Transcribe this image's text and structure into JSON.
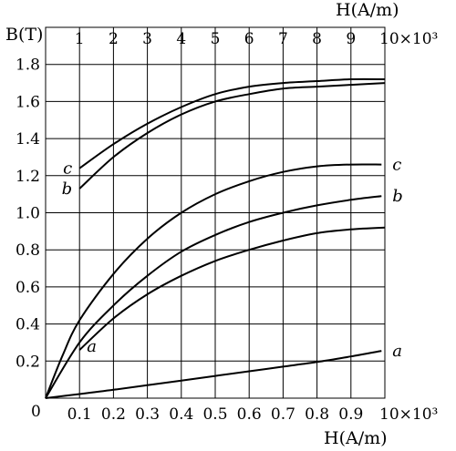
{
  "chart_data": {
    "type": "line",
    "ylabel": "B(T)",
    "xlabel_bottom": "H(A/m)",
    "xlabel_top": "H(A/m)",
    "y_ticks": [
      "0",
      "0.2",
      "0.4",
      "0.6",
      "0.8",
      "1.0",
      "1.2",
      "1.4",
      "1.6",
      "1.8"
    ],
    "x_bottom_ticks": [
      "0.1",
      "0.2",
      "0.3",
      "0.4",
      "0.5",
      "0.6",
      "0.7",
      "0.8",
      "0.9"
    ],
    "x_bottom_exponent": "10×10³",
    "x_top_ticks": [
      "1",
      "2",
      "3",
      "4",
      "5",
      "6",
      "7",
      "8",
      "9"
    ],
    "x_top_exponent": "10×10³",
    "origin_label": "0",
    "ylim": [
      0,
      2.0
    ],
    "x_bottom_lim": [
      0,
      1.0
    ],
    "x_top_lim": [
      0,
      10
    ],
    "grid": true,
    "series": [
      {
        "name": "a",
        "axis": "bottom",
        "x": [
          0,
          0.1,
          0.2,
          0.3,
          0.4,
          0.5,
          0.6,
          0.7,
          0.8,
          0.9,
          0.99
        ],
        "y": [
          0,
          0.022,
          0.045,
          0.07,
          0.095,
          0.12,
          0.145,
          0.17,
          0.195,
          0.225,
          0.255
        ]
      },
      {
        "name": "a",
        "axis": "top",
        "x": [
          1,
          2,
          3,
          4,
          5,
          6,
          7,
          8,
          9,
          10
        ],
        "y": [
          0.26,
          0.43,
          0.56,
          0.66,
          0.74,
          0.8,
          0.85,
          0.89,
          0.91,
          0.92
        ]
      },
      {
        "name": "b",
        "axis": "bottom",
        "x": [
          0,
          0.1,
          0.2,
          0.3,
          0.4,
          0.5,
          0.6,
          0.7,
          0.8,
          0.9,
          0.99
        ],
        "y": [
          0,
          0.3,
          0.5,
          0.66,
          0.79,
          0.88,
          0.95,
          1.0,
          1.04,
          1.07,
          1.09
        ]
      },
      {
        "name": "b",
        "axis": "top",
        "x": [
          1,
          2,
          3,
          4,
          5,
          6,
          7,
          8,
          9,
          10
        ],
        "y": [
          1.13,
          1.3,
          1.43,
          1.53,
          1.6,
          1.64,
          1.67,
          1.68,
          1.69,
          1.7
        ]
      },
      {
        "name": "c",
        "axis": "bottom",
        "x": [
          0,
          0.05,
          0.1,
          0.2,
          0.3,
          0.4,
          0.5,
          0.6,
          0.7,
          0.8,
          0.9,
          0.99
        ],
        "y": [
          0,
          0.23,
          0.42,
          0.67,
          0.86,
          1.0,
          1.1,
          1.17,
          1.22,
          1.25,
          1.26,
          1.26
        ]
      },
      {
        "name": "c",
        "axis": "top",
        "x": [
          1,
          2,
          3,
          4,
          5,
          6,
          7,
          8,
          9,
          10
        ],
        "y": [
          1.24,
          1.37,
          1.48,
          1.57,
          1.64,
          1.68,
          1.7,
          1.71,
          1.72,
          1.72
        ]
      }
    ]
  }
}
